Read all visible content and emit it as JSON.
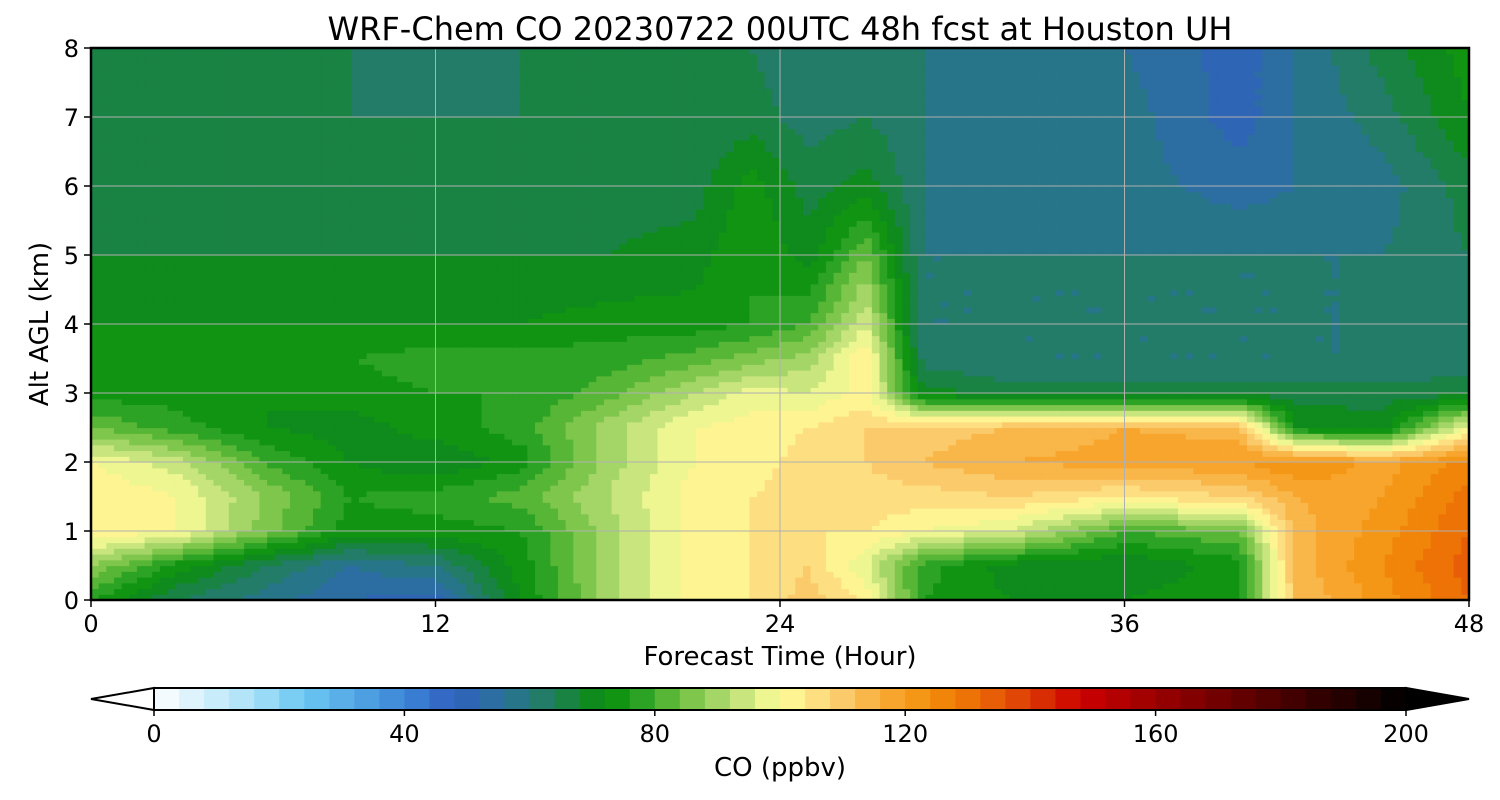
{
  "chart_data": {
    "type": "heatmap",
    "title": "WRF-Chem CO  20230722 00UTC 48h fcst at Houston UH",
    "xlabel": "Forecast Time (Hour)",
    "ylabel": "Alt AGL (km)",
    "xlim": [
      0,
      48
    ],
    "ylim": [
      0,
      8
    ],
    "xticks": [
      0,
      12,
      24,
      36,
      48
    ],
    "yticks": [
      0,
      1,
      2,
      3,
      4,
      5,
      6,
      7,
      8
    ],
    "grid": true,
    "colorbar": {
      "label": "CO  (ppbv)",
      "range": [
        0,
        200
      ],
      "step": 4,
      "ticks": [
        0,
        40,
        80,
        120,
        160,
        200
      ],
      "extend": "both",
      "stops": [
        [
          0,
          "#ffffff"
        ],
        [
          16,
          "#a8e0f7"
        ],
        [
          24,
          "#6cc8f2"
        ],
        [
          40,
          "#3c86d8"
        ],
        [
          48,
          "#3160bf"
        ],
        [
          56,
          "#2a7298"
        ],
        [
          64,
          "#1f7f58"
        ],
        [
          72,
          "#088f08"
        ],
        [
          76,
          "#18991c"
        ],
        [
          84,
          "#6cbf3e"
        ],
        [
          92,
          "#b6dc74"
        ],
        [
          100,
          "#ffff9a"
        ],
        [
          108,
          "#fcd47a"
        ],
        [
          116,
          "#f8ac38"
        ],
        [
          124,
          "#f28e0a"
        ],
        [
          132,
          "#ec6a06"
        ],
        [
          140,
          "#dc3a04"
        ],
        [
          148,
          "#cc0000"
        ],
        [
          168,
          "#7a0000"
        ],
        [
          184,
          "#3a0000"
        ],
        [
          200,
          "#000000"
        ]
      ]
    },
    "x": [
      0,
      3,
      6,
      9,
      12,
      15,
      18,
      21,
      23,
      25,
      27,
      29,
      32,
      36,
      40,
      42,
      45,
      48
    ],
    "y": [
      0,
      0.5,
      1,
      1.5,
      2,
      2.5,
      3,
      3.5,
      4,
      5,
      6,
      7,
      8
    ],
    "z": [
      [
        76,
        64,
        58,
        52,
        50,
        72,
        90,
        102,
        104,
        110,
        104,
        76,
        72,
        72,
        76,
        112,
        122,
        132
      ],
      [
        88,
        74,
        64,
        56,
        60,
        74,
        90,
        102,
        104,
        108,
        96,
        78,
        70,
        68,
        74,
        114,
        124,
        134
      ],
      [
        104,
        100,
        86,
        74,
        74,
        76,
        90,
        102,
        104,
        104,
        104,
        100,
        96,
        80,
        84,
        114,
        122,
        132
      ],
      [
        104,
        100,
        88,
        76,
        78,
        82,
        92,
        102,
        104,
        106,
        106,
        106,
        108,
        104,
        108,
        116,
        120,
        130
      ],
      [
        100,
        94,
        80,
        72,
        68,
        74,
        90,
        100,
        102,
        106,
        108,
        112,
        116,
        118,
        120,
        124,
        118,
        126
      ],
      [
        84,
        78,
        72,
        70,
        74,
        78,
        90,
        100,
        102,
        104,
        108,
        110,
        112,
        116,
        114,
        72,
        70,
        100
      ],
      [
        74,
        74,
        72,
        74,
        76,
        76,
        82,
        92,
        98,
        96,
        102,
        70,
        66,
        66,
        66,
        66,
        66,
        66
      ],
      [
        76,
        74,
        76,
        76,
        78,
        78,
        78,
        82,
        86,
        90,
        104,
        62,
        60,
        60,
        60,
        60,
        60,
        62
      ],
      [
        72,
        72,
        72,
        72,
        72,
        72,
        74,
        74,
        76,
        80,
        96,
        60,
        60,
        60,
        60,
        60,
        60,
        62
      ],
      [
        68,
        68,
        68,
        68,
        68,
        68,
        68,
        70,
        76,
        70,
        84,
        60,
        60,
        60,
        60,
        60,
        60,
        64
      ],
      [
        66,
        66,
        66,
        66,
        66,
        66,
        66,
        66,
        74,
        66,
        70,
        60,
        58,
        58,
        54,
        56,
        58,
        66
      ],
      [
        66,
        66,
        66,
        64,
        64,
        64,
        64,
        64,
        66,
        62,
        64,
        60,
        58,
        58,
        50,
        56,
        62,
        72
      ],
      [
        66,
        64,
        64,
        64,
        62,
        64,
        64,
        64,
        64,
        60,
        64,
        60,
        58,
        56,
        50,
        56,
        66,
        74
      ]
    ]
  }
}
